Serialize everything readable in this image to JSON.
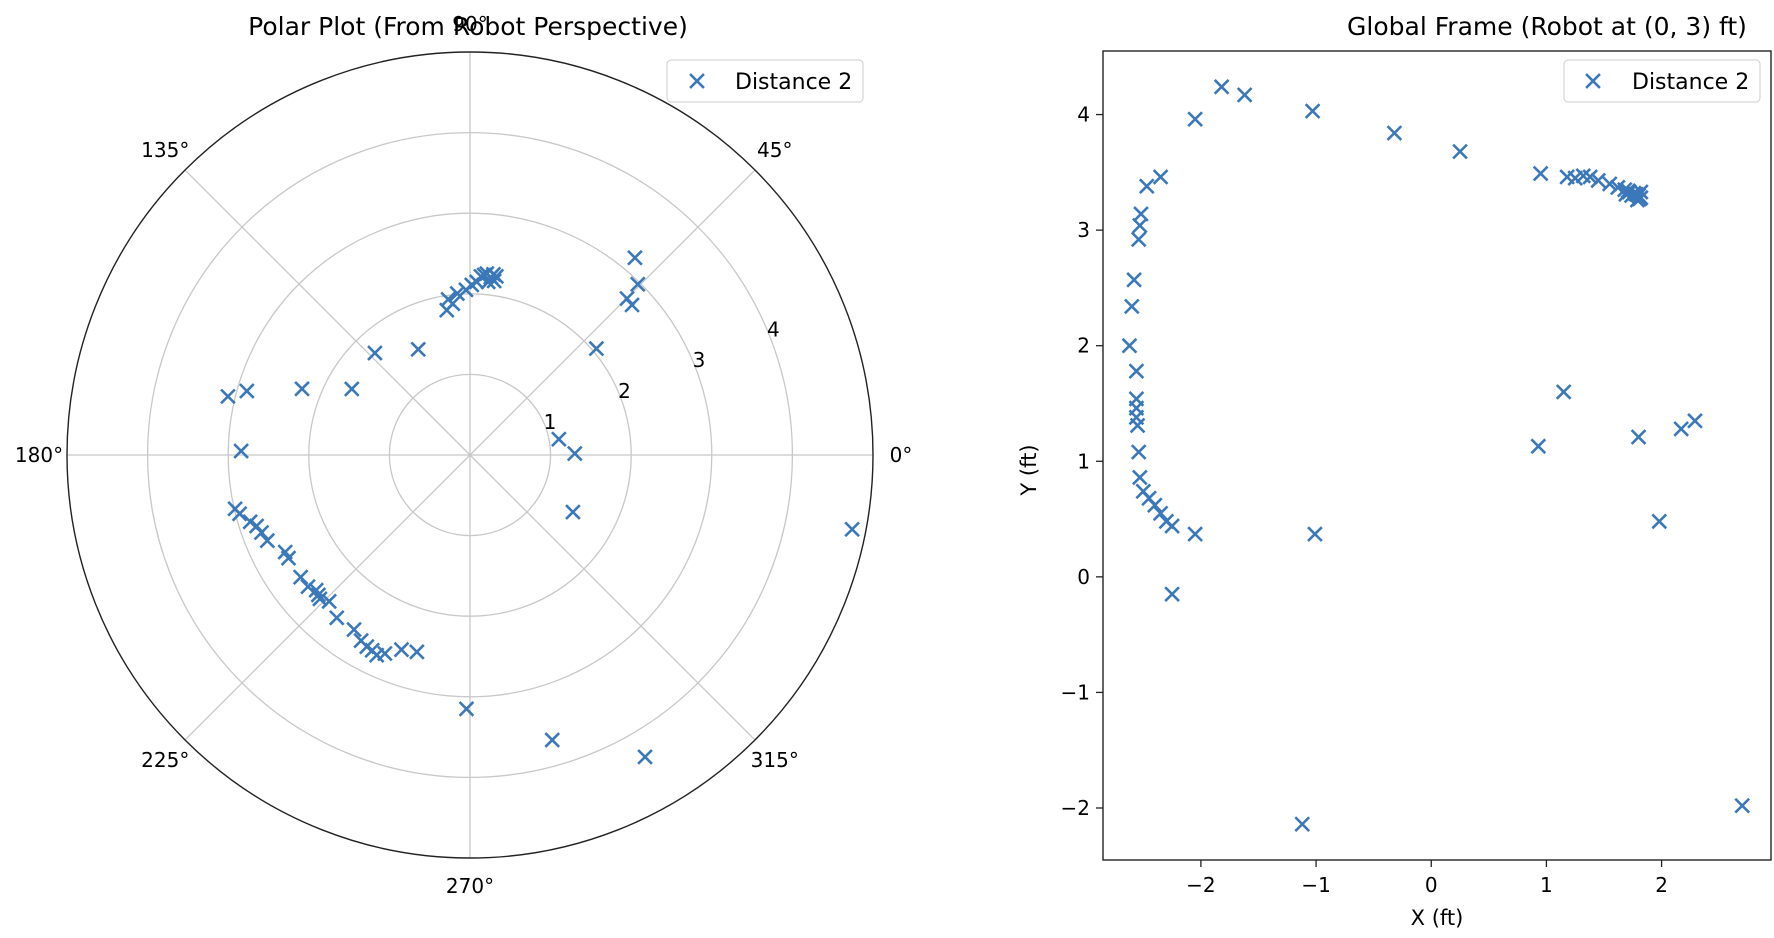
{
  "chart_data": [
    {
      "type": "scatter",
      "subtype": "polar",
      "title": "Polar Plot (From Robot Perspective)",
      "theta_ticks_deg": [
        0,
        45,
        90,
        135,
        180,
        225,
        270,
        315
      ],
      "theta_tick_labels": [
        "0°",
        "45°",
        "90°",
        "135°",
        "180°",
        "225°",
        "270°",
        "315°"
      ],
      "r_ticks": [
        1,
        2,
        3,
        4
      ],
      "r_tick_labels": [
        "1",
        "2",
        "3",
        "4"
      ],
      "rlim": [
        0,
        5
      ],
      "grid": true,
      "legend_position": "top-right",
      "marker_color": "#3a78b9",
      "series": [
        {
          "name": "Distance 2",
          "marker": "x",
          "theta_deg": [
            10.1,
            40.1,
            42.8,
            44.9,
            45.5,
            50.1,
            -11.0,
            0.8,
            -29.0,
            -73.9,
            -90.8,
            -59.9,
            81.6,
            82.1,
            82.6,
            83.3,
            84.0,
            84.7,
            85.5,
            86.5,
            87.8,
            89.4,
            91.4,
            94.5,
            96.5,
            98.0,
            99.1,
            116.1,
            133.0,
            150.8,
            158.5,
            164.0,
            166.4,
            179.0,
            192.9,
            194.3,
            196.9,
            198.4,
            200.4,
            202.9,
            207.7,
            209.6,
            215.8,
            219.1,
            221.3,
            222.7,
            223.8,
            226.1,
            230.7,
            236.4,
            239.6,
            241.7,
            243.4,
            245.0,
            246.8,
            250.6,
            254.9
          ],
          "r": [
            1.12,
            2.05,
            2.74,
            2.75,
            2.97,
            3.19,
            4.83,
            1.3,
            1.46,
            3.68,
            3.15,
            4.33,
            2.24,
            2.18,
            2.26,
            2.22,
            2.16,
            2.26,
            2.24,
            2.22,
            2.15,
            2.11,
            2.05,
            2.01,
            1.89,
            1.95,
            1.82,
            1.46,
            1.73,
            1.68,
            2.24,
            2.88,
            3.09,
            2.84,
            2.99,
            2.95,
            2.85,
            2.79,
            2.76,
            2.73,
            2.59,
            2.59,
            2.59,
            2.59,
            2.54,
            2.56,
            2.58,
            2.52,
            2.61,
            2.6,
            2.67,
            2.7,
            2.71,
            2.74,
            2.68,
            2.56,
            2.53
          ]
        }
      ]
    },
    {
      "type": "scatter",
      "title": "Global Frame (Robot at (0, 3) ft)",
      "xlabel": "X (ft)",
      "ylabel": "Y (ft)",
      "xlim": [
        -2.85,
        2.95
      ],
      "ylim": [
        -2.45,
        4.55
      ],
      "xticks": [
        -2,
        -1,
        0,
        1,
        2
      ],
      "xtick_labels": [
        "−2",
        "−1",
        "0",
        "1",
        "2"
      ],
      "yticks": [
        -2,
        -1,
        0,
        1,
        2,
        3,
        4
      ],
      "ytick_labels": [
        "−2",
        "−1",
        "0",
        "1",
        "2",
        "3",
        "4"
      ],
      "grid": false,
      "legend_position": "top-right",
      "marker_color": "#3a78b9",
      "series": [
        {
          "name": "Distance 2",
          "marker": "x",
          "x": [
            -1.82,
            -1.62,
            -2.05,
            -1.03,
            -0.32,
            0.25,
            0.95,
            1.18,
            1.25,
            1.32,
            1.38,
            1.45,
            1.55,
            1.62,
            1.68,
            1.72,
            1.76,
            1.78,
            1.8,
            1.82,
            1.79,
            1.74,
            1.71,
            1.69,
            1.82,
            1.81,
            -2.35,
            -2.47,
            -2.52,
            -2.53,
            -2.54,
            -2.58,
            -2.6,
            -2.62,
            -2.56,
            -2.56,
            -2.56,
            -2.56,
            -2.55,
            -2.54,
            -2.53,
            -2.5,
            -2.45,
            -2.4,
            -2.35,
            -2.3,
            -2.25,
            -2.05,
            -2.25,
            1.15,
            0.93,
            1.8,
            2.17,
            2.29,
            1.98,
            -1.01,
            -1.12,
            2.7
          ],
          "y": [
            4.24,
            4.17,
            3.96,
            4.03,
            3.84,
            3.68,
            3.49,
            3.46,
            3.45,
            3.47,
            3.46,
            3.43,
            3.4,
            3.37,
            3.35,
            3.33,
            3.32,
            3.31,
            3.3,
            3.28,
            3.26,
            3.3,
            3.34,
            3.31,
            3.33,
            3.27,
            3.46,
            3.38,
            3.14,
            3.04,
            2.92,
            2.57,
            2.34,
            2.0,
            1.78,
            1.54,
            1.46,
            1.38,
            1.31,
            1.08,
            0.86,
            0.74,
            0.68,
            0.62,
            0.55,
            0.48,
            0.44,
            0.37,
            -0.15,
            1.6,
            1.13,
            1.21,
            1.28,
            1.35,
            0.48,
            0.37,
            -2.14,
            -1.98
          ]
        }
      ]
    }
  ]
}
